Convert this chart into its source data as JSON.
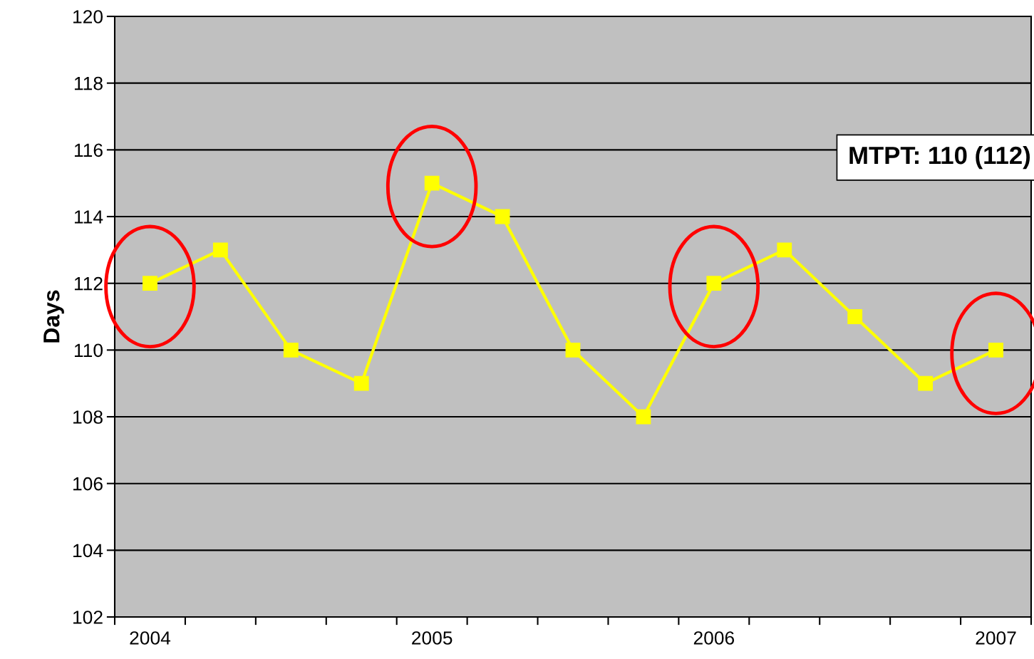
{
  "chart_data": {
    "type": "line",
    "ylabel": "Days",
    "categories": [
      "2004",
      null,
      null,
      null,
      "2005",
      null,
      null,
      null,
      "2006",
      null,
      null,
      null,
      "2007"
    ],
    "series": [
      {
        "color": "#ffff00",
        "values": [
          112,
          113,
          110,
          109,
          115,
          114,
          110,
          108,
          112,
          113,
          111,
          109,
          110
        ]
      }
    ],
    "ylim": [
      102,
      120
    ],
    "yticks": [
      102,
      104,
      106,
      108,
      110,
      112,
      114,
      116,
      118,
      120
    ],
    "grid": "y",
    "marker": "square",
    "line_style": "solid",
    "annotations": [
      "MTPT: 110 (112)"
    ]
  }
}
